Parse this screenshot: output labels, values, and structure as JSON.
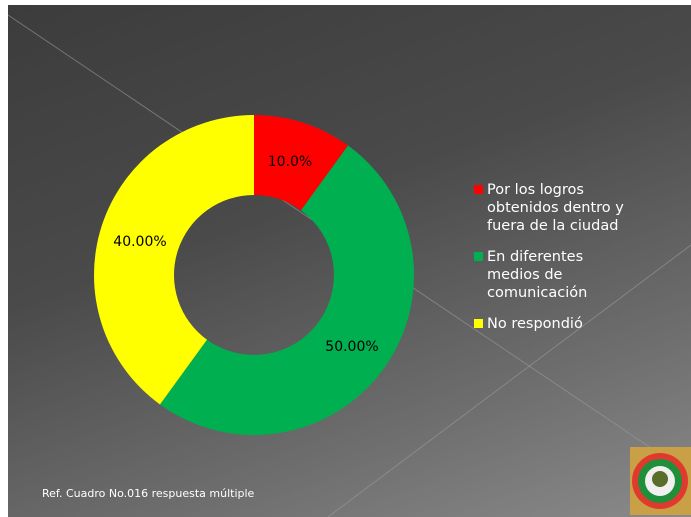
{
  "chart_data": {
    "type": "donut",
    "categories": [
      "Por los logros obtenidos dentro y fuera de la ciudad",
      "En diferentes medios de comunicación",
      "No respondió"
    ],
    "series": [
      {
        "values": [
          10,
          50,
          40
        ],
        "value_labels": [
          "10.0%",
          "50.00%",
          "40.00%"
        ],
        "colors": [
          "#ff0000",
          "#00b050",
          "#ffff00"
        ]
      }
    ],
    "legend": "right",
    "note": "Ref. Cuadro No.016 respuesta múltiple"
  }
}
